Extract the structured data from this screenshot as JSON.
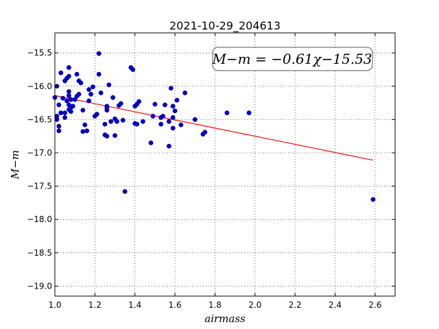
{
  "chart_data": {
    "type": "scatter",
    "title": "2021-10-29_204613",
    "xlabel": "airmass",
    "ylabel": "M−m",
    "xlim": [
      1.0,
      2.7
    ],
    "ylim": [
      -19.15,
      -15.2
    ],
    "y_inverted": true,
    "grid": true,
    "grid_style": "dotted",
    "x_ticks": [
      1.0,
      1.2,
      1.4,
      1.6,
      1.8,
      2.0,
      2.2,
      2.4,
      2.6
    ],
    "x_tick_labels": [
      "1.0",
      "1.2",
      "1.4",
      "1.6",
      "1.8",
      "2.0",
      "2.2",
      "2.4",
      "2.6"
    ],
    "y_ticks": [
      -15.5,
      -16.0,
      -16.5,
      -17.0,
      -17.5,
      -18.0,
      -18.5,
      -19.0
    ],
    "y_tick_labels": [
      "−15.5",
      "−16.0",
      "−16.5",
      "−17.0",
      "−17.5",
      "−18.0",
      "−18.5",
      "−19.0"
    ],
    "annotation": "M−m = −0.61χ−15.53",
    "fit": {
      "slope": -0.61,
      "intercept": -15.53,
      "x_range": [
        1.0,
        2.59
      ],
      "color": "#ff0000"
    },
    "point_color": "#0000cc",
    "series": [
      {
        "points": [
          [
            1.0,
            -16.17
          ],
          [
            1.01,
            -16.45
          ],
          [
            1.01,
            -16.5
          ],
          [
            1.01,
            -16.0
          ],
          [
            1.02,
            -16.28
          ],
          [
            1.02,
            -16.67
          ],
          [
            1.02,
            -16.6
          ],
          [
            1.03,
            -16.4
          ],
          [
            1.03,
            -15.8
          ],
          [
            1.04,
            -16.18
          ],
          [
            1.05,
            -15.92
          ],
          [
            1.05,
            -16.4
          ],
          [
            1.05,
            -16.47
          ],
          [
            1.06,
            -15.88
          ],
          [
            1.06,
            -16.22
          ],
          [
            1.07,
            -15.72
          ],
          [
            1.07,
            -15.85
          ],
          [
            1.07,
            -16.08
          ],
          [
            1.07,
            -16.14
          ],
          [
            1.07,
            -16.28
          ],
          [
            1.07,
            -16.35
          ],
          [
            1.08,
            -16.2
          ],
          [
            1.08,
            -16.38
          ],
          [
            1.08,
            -16.32
          ],
          [
            1.09,
            -16.3
          ],
          [
            1.1,
            -16.2
          ],
          [
            1.11,
            -15.82
          ],
          [
            1.11,
            -16.15
          ],
          [
            1.12,
            -15.92
          ],
          [
            1.12,
            -16.12
          ],
          [
            1.13,
            -15.95
          ],
          [
            1.14,
            -16.36
          ],
          [
            1.14,
            -16.68
          ],
          [
            1.15,
            -16.58
          ],
          [
            1.16,
            -16.67
          ],
          [
            1.17,
            -16.05
          ],
          [
            1.17,
            -16.22
          ],
          [
            1.18,
            -16.12
          ],
          [
            1.19,
            -16.01
          ],
          [
            1.2,
            -16.45
          ],
          [
            1.21,
            -16.42
          ],
          [
            1.22,
            -15.82
          ],
          [
            1.22,
            -15.51
          ],
          [
            1.23,
            -16.1
          ],
          [
            1.25,
            -16.73
          ],
          [
            1.25,
            -16.57
          ],
          [
            1.26,
            -16.32
          ],
          [
            1.26,
            -16.3
          ],
          [
            1.26,
            -16.36
          ],
          [
            1.26,
            -16.75
          ],
          [
            1.27,
            -15.98
          ],
          [
            1.28,
            -16.53
          ],
          [
            1.29,
            -16.17
          ],
          [
            1.3,
            -16.49
          ],
          [
            1.3,
            -16.74
          ],
          [
            1.31,
            -16.53
          ],
          [
            1.32,
            -16.29
          ],
          [
            1.33,
            -16.26
          ],
          [
            1.34,
            -16.51
          ],
          [
            1.35,
            -17.58
          ],
          [
            1.38,
            -15.72
          ],
          [
            1.39,
            -15.75
          ],
          [
            1.4,
            -16.56
          ],
          [
            1.4,
            -16.3
          ],
          [
            1.41,
            -16.27
          ],
          [
            1.41,
            -16.57
          ],
          [
            1.42,
            -16.23
          ],
          [
            1.44,
            -16.53
          ],
          [
            1.48,
            -16.85
          ],
          [
            1.49,
            -16.45
          ],
          [
            1.5,
            -16.27
          ],
          [
            1.53,
            -16.47
          ],
          [
            1.53,
            -16.57
          ],
          [
            1.54,
            -16.45
          ],
          [
            1.55,
            -16.28
          ],
          [
            1.57,
            -16.53
          ],
          [
            1.57,
            -16.9
          ],
          [
            1.58,
            -16.03
          ],
          [
            1.59,
            -16.63
          ],
          [
            1.59,
            -16.47
          ],
          [
            1.59,
            -16.3
          ],
          [
            1.6,
            -16.37
          ],
          [
            1.61,
            -16.21
          ],
          [
            1.63,
            -16.58
          ],
          [
            1.65,
            -16.1
          ],
          [
            1.7,
            -16.5
          ],
          [
            1.74,
            -16.72
          ],
          [
            1.75,
            -16.69
          ],
          [
            1.86,
            -16.4
          ],
          [
            1.97,
            -16.4
          ],
          [
            2.59,
            -17.7
          ]
        ]
      }
    ]
  }
}
